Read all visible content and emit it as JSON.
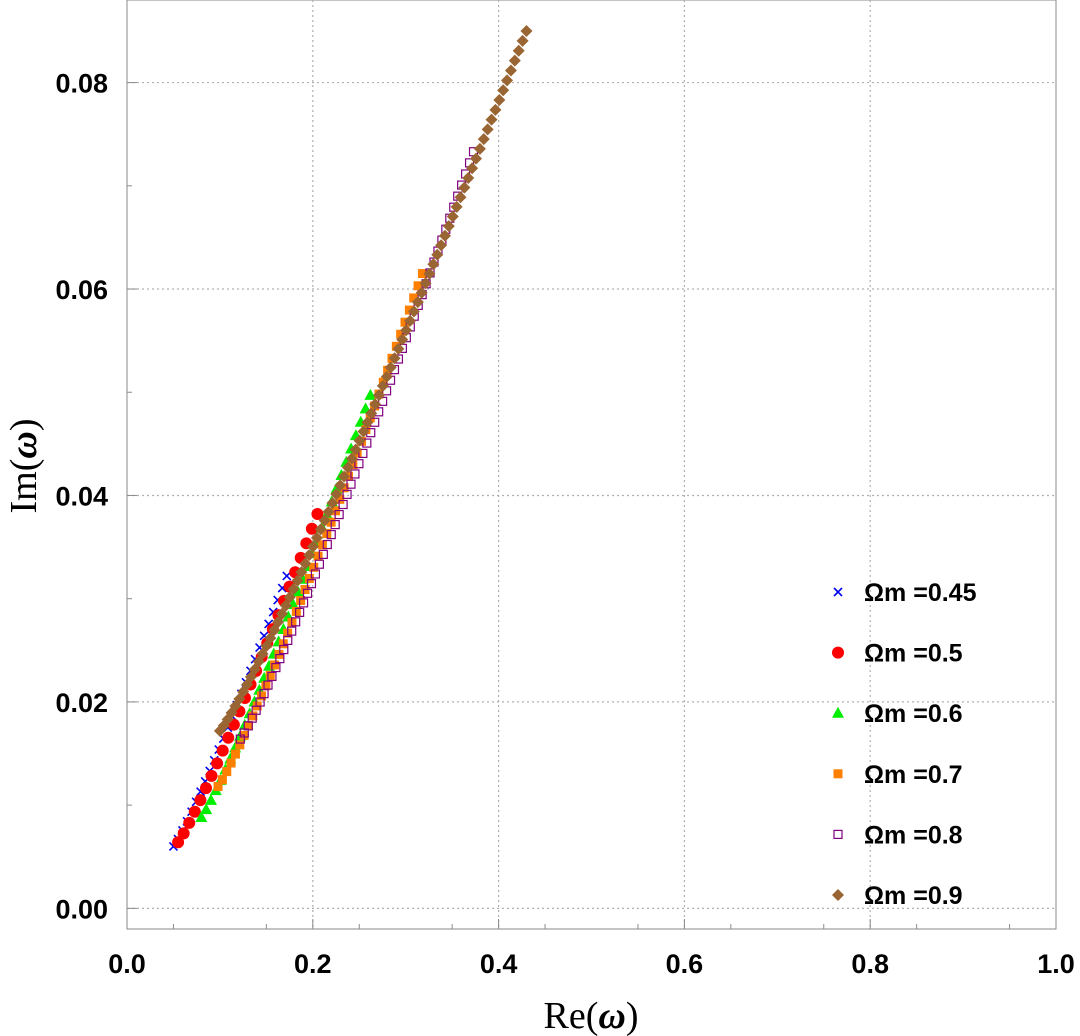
{
  "chart_data": {
    "type": "scatter",
    "title": "",
    "xlabel": "Re(ω)",
    "ylabel": "Im(ω)",
    "xlabel_parts": {
      "pre": "Re(",
      "sym": "ω",
      "post": ")"
    },
    "ylabel_parts": {
      "pre": "Im(",
      "sym": "ω",
      "post": ")"
    },
    "xlim": [
      0.0,
      1.0
    ],
    "ylim": [
      -0.002,
      0.088
    ],
    "xticks": [
      "0.0",
      "0.2",
      "0.4",
      "0.6",
      "0.8",
      "1.0"
    ],
    "yticks": [
      "0.00",
      "0.02",
      "0.04",
      "0.06",
      "0.08"
    ],
    "grid": true,
    "legend_position": "bottom-right",
    "series": [
      {
        "name": "Ωm =0.45",
        "marker": "x",
        "color": "#0000ee",
        "x_start": 0.05,
        "x_end": 0.172,
        "y_start": 0.006,
        "y_end": 0.0322,
        "n": 26
      },
      {
        "name": "Ωm =0.5",
        "marker": "circle",
        "color": "#ff0000",
        "x_start": 0.055,
        "x_end": 0.205,
        "y_start": 0.0064,
        "y_end": 0.0382,
        "n": 26
      },
      {
        "name": "Ωm =0.6",
        "marker": "triangle",
        "color": "#00ee00",
        "x_start": 0.08,
        "x_end": 0.262,
        "y_start": 0.0088,
        "y_end": 0.0497,
        "n": 36
      },
      {
        "name": "Ωm =0.7",
        "marker": "square",
        "color": "#ff8000",
        "x_start": 0.098,
        "x_end": 0.318,
        "y_start": 0.0118,
        "y_end": 0.0615,
        "n": 48
      },
      {
        "name": "Ωm =0.8",
        "marker": "open-square",
        "color": "#800080",
        "x_start": 0.122,
        "x_end": 0.373,
        "y_start": 0.0164,
        "y_end": 0.0733,
        "n": 60
      },
      {
        "name": "Ωm =0.9",
        "marker": "diamond",
        "color": "#996633",
        "x_start": 0.1,
        "x_end": 0.43,
        "y_start": 0.0172,
        "y_end": 0.085,
        "n": 80
      }
    ]
  }
}
